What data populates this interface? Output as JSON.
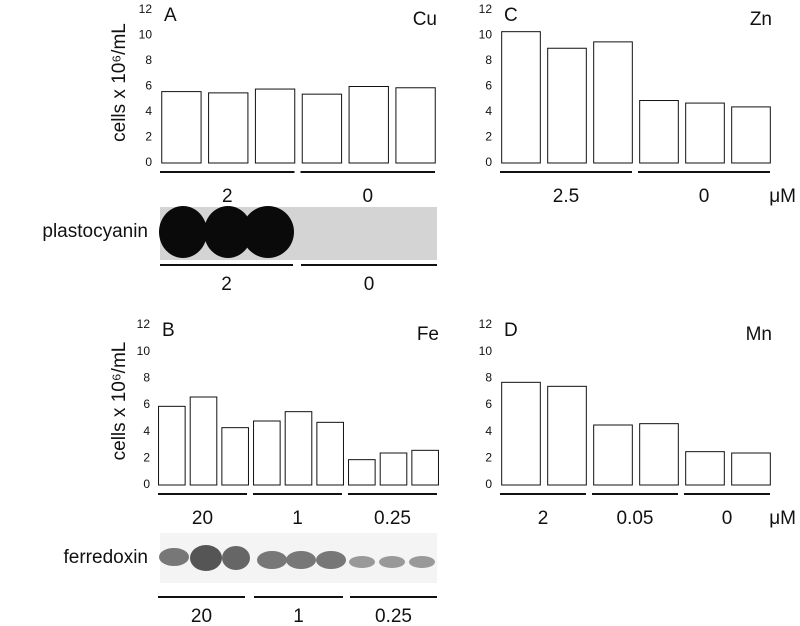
{
  "chart_data": [
    {
      "type": "bar",
      "panel": "A",
      "label": "Cu",
      "y_label": "cells x 10⁶/mL",
      "groups": [
        "2",
        "0"
      ],
      "values": [
        [
          5.6,
          5.5,
          5.8
        ],
        [
          5.4,
          6.0,
          5.9
        ]
      ],
      "color": "#ffffff",
      "ylim": [
        0,
        12
      ],
      "yticks": [
        0,
        2,
        4,
        6,
        8,
        10,
        12
      ]
    },
    {
      "type": "bar",
      "panel": "C",
      "label": "Zn",
      "unit": "μM",
      "groups": [
        "2.5",
        "0"
      ],
      "values": [
        [
          10.3,
          9.0,
          9.5
        ],
        [
          4.9,
          4.7,
          4.4
        ]
      ],
      "color": "#ffffff",
      "ylim": [
        0,
        12
      ],
      "yticks": [
        0,
        2,
        4,
        6,
        8,
        10,
        12
      ]
    },
    {
      "type": "bar",
      "panel": "B",
      "label": "Fe",
      "y_label": "cells x 10⁶/mL",
      "groups": [
        "20",
        "1",
        "0.25"
      ],
      "values": [
        [
          5.9,
          6.6,
          4.3
        ],
        [
          4.8,
          5.5,
          4.7
        ],
        [
          1.9,
          2.4,
          2.6
        ]
      ],
      "color": "#ffffff",
      "ylim": [
        0,
        12
      ],
      "yticks": [
        0,
        2,
        4,
        6,
        8,
        10,
        12
      ]
    },
    {
      "type": "bar",
      "panel": "D",
      "label": "Mn",
      "unit": "μM",
      "groups": [
        "2",
        "0.05",
        "0"
      ],
      "values": [
        [
          7.7,
          7.4
        ],
        [
          4.5,
          4.6
        ],
        [
          2.5,
          2.4
        ]
      ],
      "color": "#ffffff",
      "ylim": [
        0,
        12
      ],
      "yticks": [
        0,
        2,
        4,
        6,
        8,
        10,
        12
      ]
    }
  ],
  "blots": [
    {
      "label": "plastocyanin",
      "groups": [
        "2",
        "0"
      ]
    },
    {
      "label": "ferredoxin",
      "groups": [
        "20",
        "1",
        "0.25"
      ]
    }
  ]
}
